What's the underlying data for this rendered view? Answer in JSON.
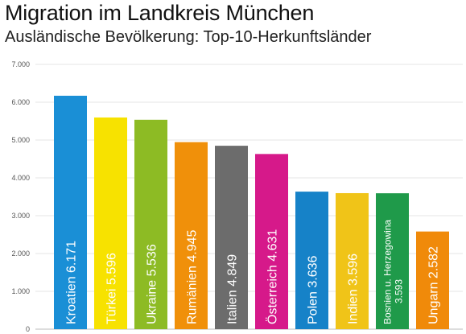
{
  "header": {
    "title": "Migration im Landkreis München",
    "subtitle": "Ausländische Bevölkerung: Top-10-Herkunftsländer"
  },
  "chart_data": {
    "type": "bar",
    "title": "Migration im Landkreis München",
    "subtitle": "Ausländische Bevölkerung: Top-10-Herkunftsländer",
    "categories": [
      "Kroatien",
      "Türkei",
      "Ukraine",
      "Rumänien",
      "Italien",
      "Österreich",
      "Polen",
      "Indien",
      "Bosnien u. Herzegowina",
      "Ungarn"
    ],
    "values": [
      6171,
      5596,
      5536,
      4945,
      4849,
      4631,
      3636,
      3596,
      3593,
      2582
    ],
    "value_labels": [
      "6.171",
      "5.596",
      "5.536",
      "4.945",
      "4.849",
      "4.631",
      "3.636",
      "3.596",
      "3.593",
      "2.582"
    ],
    "colors": [
      "#1a8fd6",
      "#f7e200",
      "#8dbb24",
      "#f0900a",
      "#6c6c6c",
      "#d6198a",
      "#1682c8",
      "#f0c418",
      "#1f9a4a",
      "#f08a0a"
    ],
    "ylim": [
      0,
      7000
    ],
    "yticks": [
      0,
      1000,
      2000,
      3000,
      4000,
      5000,
      6000,
      7000
    ],
    "ytick_labels": [
      "0",
      "1.000",
      "2.000",
      "3.000",
      "4.000",
      "5.000",
      "6.000",
      "7.000"
    ],
    "grid": true,
    "xlabel": "",
    "ylabel": ""
  }
}
